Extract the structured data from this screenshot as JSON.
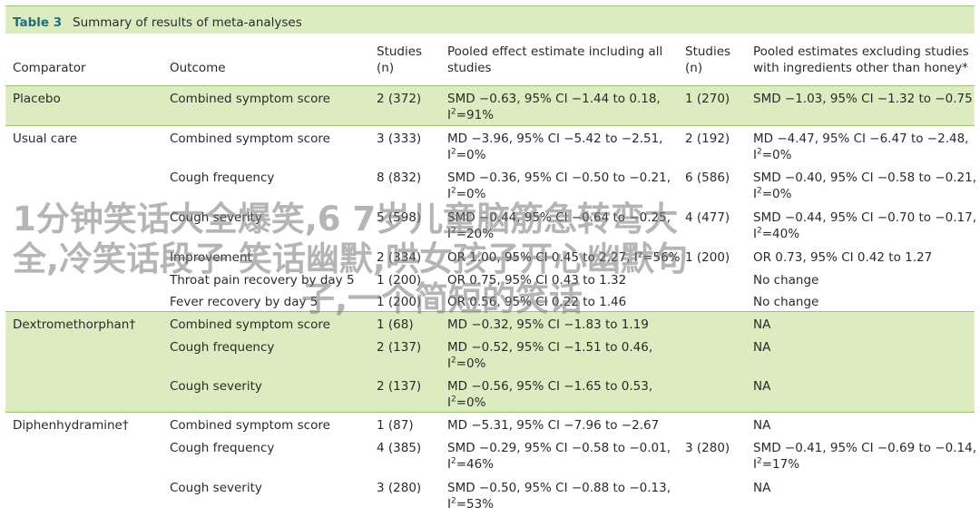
{
  "caption": {
    "label": "Table 3",
    "title": "Summary of results of meta-analyses"
  },
  "headers": {
    "comparator": "Comparator",
    "outcome": "Outcome",
    "studies_1_a": "Studies",
    "studies_1_b": "(n)",
    "pooled_all_a": "Pooled effect estimate including all",
    "pooled_all_b": "studies",
    "studies_2_a": "Studies",
    "studies_2_b": "(n)",
    "pooled_excl_a": "Pooled estimates excluding studies",
    "pooled_excl_b": "with ingredients other than honey*"
  },
  "rows": [
    {
      "comparator": "Placebo",
      "outcome": "Combined symptom score",
      "studies1": "2 (372)",
      "est1": "SMD −0.63, 95% CI −1.44 to 0.18,",
      "est1_i2": "=91%",
      "studies2": "1 (270)",
      "est2": "SMD −1.03, 95% CI −1.32 to −0.75",
      "est2_i2": ""
    },
    {
      "comparator": "Usual care",
      "outcome": "Combined symptom score",
      "studies1": "3 (333)",
      "est1": "MD −3.96, 95% CI −5.42 to −2.51,",
      "est1_i2": "=0%",
      "studies2": "2 (192)",
      "est2": "MD −4.47, 95% CI −6.47 to −2.48,",
      "est2_i2": "=0%"
    },
    {
      "comparator": "",
      "outcome": "Cough frequency",
      "studies1": "8 (832)",
      "est1": "SMD −0.36, 95% CI −0.50 to −0.21,",
      "est1_i2": "=0%",
      "studies2": "6 (586)",
      "est2": "SMD −0.40, 95% CI −0.58 to −0.21,",
      "est2_i2": "=0%"
    },
    {
      "comparator": "",
      "outcome": "Cough severity",
      "studies1": "5 (598)",
      "est1": "SMD −0.44, 95% CI −0.64 to −0.25,",
      "est1_i2": "=20%",
      "studies2": "4 (477)",
      "est2": "SMD −0.44, 95% CI −0.70 to −0.17,",
      "est2_i2": "=40%"
    },
    {
      "comparator": "",
      "outcome": "Improvement",
      "studies1": "2 (334)",
      "est1": "OR 1.00, 95% CI 0.45 to 2.27, I²=56%",
      "est1_i2": "",
      "studies2": "1 (200)",
      "est2": "OR 0.73, 95% CI 0.42 to 1.27",
      "est2_i2": ""
    },
    {
      "comparator": "",
      "outcome": "Throat pain recovery by day 5",
      "studies1": "1 (200)",
      "est1": "OR 0.75, 95% CI 0.43 to 1.32",
      "est1_i2": "",
      "studies2": "",
      "est2": "No change",
      "est2_i2": ""
    },
    {
      "comparator": "",
      "outcome": "Fever recovery by day 5",
      "studies1": "1 (200)",
      "est1": "OR 0.56, 95% CI 0.22 to 1.46",
      "est1_i2": "",
      "studies2": "",
      "est2": "No change",
      "est2_i2": ""
    },
    {
      "comparator": "Dextromethorphan†",
      "outcome": "Combined symptom score",
      "studies1": "1 (68)",
      "est1": "MD −0.32, 95% CI −1.83 to 1.19",
      "est1_i2": "",
      "studies2": "",
      "est2": "NA",
      "est2_i2": ""
    },
    {
      "comparator": "",
      "outcome": "Cough frequency",
      "studies1": "2 (137)",
      "est1": "MD −0.52, 95% CI −1.51 to 0.46,",
      "est1_i2": "=0%",
      "studies2": "",
      "est2": "NA",
      "est2_i2": ""
    },
    {
      "comparator": "",
      "outcome": "Cough severity",
      "studies1": "2 (137)",
      "est1": "MD −0.56, 95% CI −1.65 to 0.53,",
      "est1_i2": "=0%",
      "studies2": "",
      "est2": "NA",
      "est2_i2": ""
    },
    {
      "comparator": "Diphenhydramine†",
      "outcome": "Combined symptom score",
      "studies1": "1 (87)",
      "est1": "MD −5.31, 95% CI −7.96 to −2.67",
      "est1_i2": "",
      "studies2": "",
      "est2": "NA",
      "est2_i2": ""
    },
    {
      "comparator": "",
      "outcome": "Cough frequency",
      "studies1": "4 (385)",
      "est1": "SMD −0.29, 95% CI −0.58 to −0.01,",
      "est1_i2": "=46%",
      "studies2": "3 (280)",
      "est2": "SMD −0.41, 95% CI −0.69 to −0.14,",
      "est2_i2": "=17%"
    },
    {
      "comparator": "",
      "outcome": "Cough severity",
      "studies1": "3 (280)",
      "est1": "SMD −0.50, 95% CI −0.88 to −0.13,",
      "est1_i2": "=53%",
      "studies2": "",
      "est2": "NA",
      "est2_i2": ""
    }
  ],
  "overlay_text": {
    "line1": "1分钟笑话大全爆笑,6 7岁儿童脑筋急转弯大",
    "line2": "全,冷笑话段子 笑话幽默,哄女孩子开心幽默句",
    "line3": "子,一个简短的笑话"
  },
  "colors": {
    "band": "#dcecc0",
    "rule": "#9cbf72",
    "label": "#1b6f7f",
    "text": "#2a2a2a"
  }
}
